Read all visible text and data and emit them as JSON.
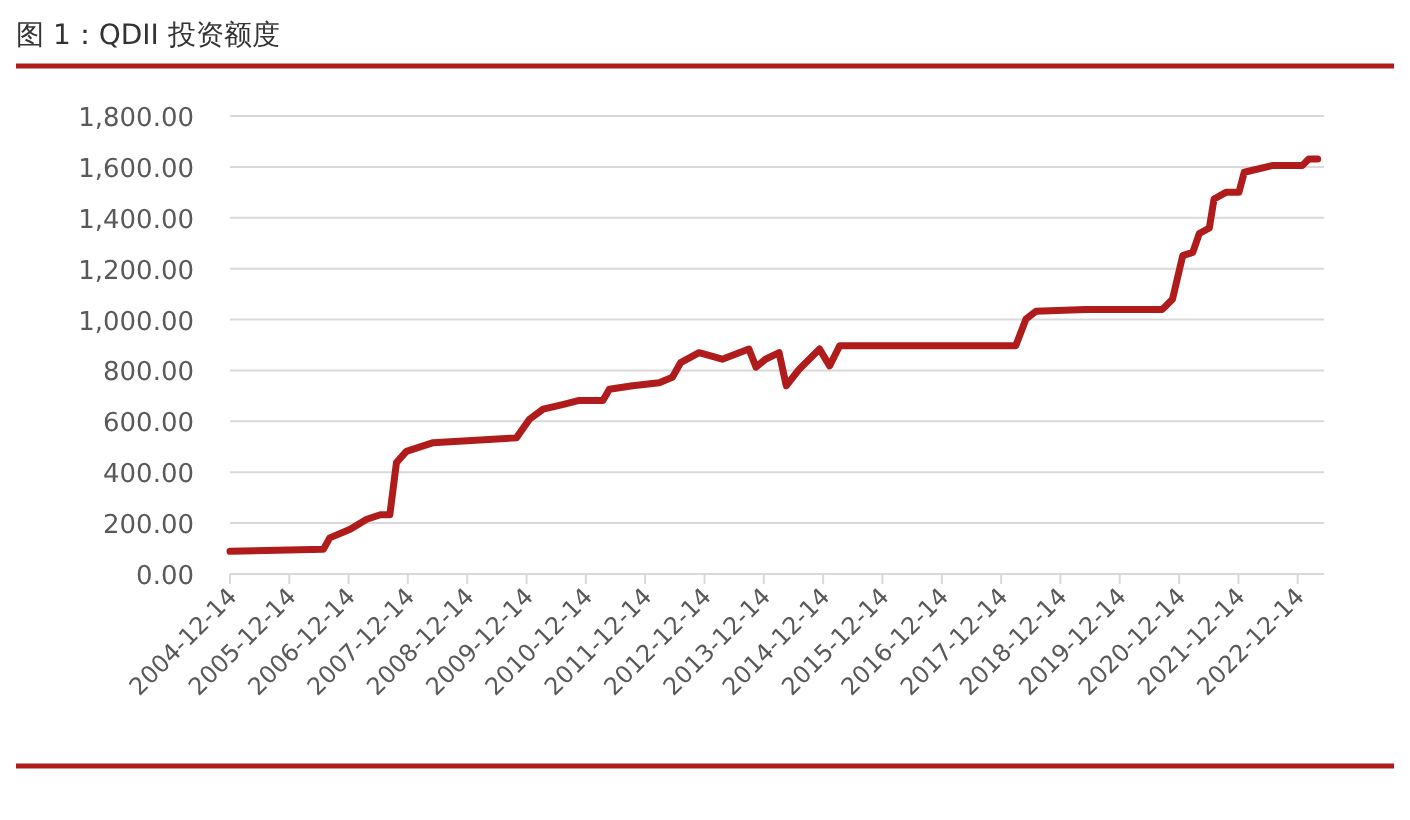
{
  "chart_data": {
    "type": "line",
    "title": "图 1：QDII 投资额度",
    "x": [
      "2004-12-14",
      "2006-07-12",
      "2006-08-20",
      "2006-12-24",
      "2007-04-05",
      "2007-06-28",
      "2007-08-25",
      "2007-10-05",
      "2007-12-05",
      "2008-05-18",
      "2009-10-12",
      "2010-01-01",
      "2010-03-26",
      "2010-07-24",
      "2010-11-03",
      "2011-03-29",
      "2011-05-08",
      "2011-09-28",
      "2012-03-10",
      "2012-05-30",
      "2012-07-20",
      "2012-11-10",
      "2013-04-02",
      "2013-09-13",
      "2013-10-27",
      "2013-12-24",
      "2014-03-18",
      "2014-05-01",
      "2014-07-20",
      "2014-11-22",
      "2015-01-23",
      "2015-03-26",
      "2018-03-14",
      "2018-05-16",
      "2018-07-17",
      "2019-05-19",
      "2020-09-02",
      "2020-11-03",
      "2021-01-05",
      "2021-03-08",
      "2021-04-17",
      "2021-06-18",
      "2021-07-17",
      "2021-09-28",
      "2021-12-17",
      "2022-01-19",
      "2022-07-09",
      "2023-01-11",
      "2023-02-20",
      "2023-04-16"
    ],
    "series": [
      {
        "color": "#b01c1c",
        "values": [
          89,
          97,
          142,
          176,
          215,
          233,
          233,
          438,
          482,
          516,
          535,
          608,
          648,
          666,
          682,
          682,
          726,
          740,
          752,
          773,
          831,
          870,
          844,
          884,
          813,
          844,
          870,
          740,
          805,
          884,
          818,
          897,
          897,
          1002,
          1033,
          1040,
          1040,
          1080,
          1251,
          1264,
          1338,
          1360,
          1474,
          1500,
          1500,
          1579,
          1605,
          1605,
          1631,
          1631
        ]
      }
    ],
    "xlim": [
      "2004-12-14",
      "2023-05-25"
    ],
    "xticks": [
      "2004-12-14",
      "2005-12-14",
      "2006-12-14",
      "2007-12-14",
      "2008-12-14",
      "2009-12-14",
      "2010-12-14",
      "2011-12-14",
      "2012-12-14",
      "2013-12-14",
      "2014-12-14",
      "2015-12-14",
      "2016-12-14",
      "2017-12-14",
      "2018-12-14",
      "2019-12-14",
      "2020-12-14",
      "2021-12-14",
      "2022-12-14"
    ],
    "ylim": [
      0,
      1800
    ],
    "yticks": [
      {
        "value": 0,
        "label": "0.00"
      },
      {
        "value": 200,
        "label": "200.00"
      },
      {
        "value": 400,
        "label": "400.00"
      },
      {
        "value": 600,
        "label": "600.00"
      },
      {
        "value": 800,
        "label": "800.00"
      },
      {
        "value": 1000,
        "label": "1,000.00"
      },
      {
        "value": 1200,
        "label": "1,200.00"
      },
      {
        "value": 1400,
        "label": "1,400.00"
      },
      {
        "value": 1600,
        "label": "1,600.00"
      },
      {
        "value": 1800,
        "label": "1,800.00"
      }
    ],
    "grid": "y",
    "marker": "none",
    "line_style": "solid"
  }
}
